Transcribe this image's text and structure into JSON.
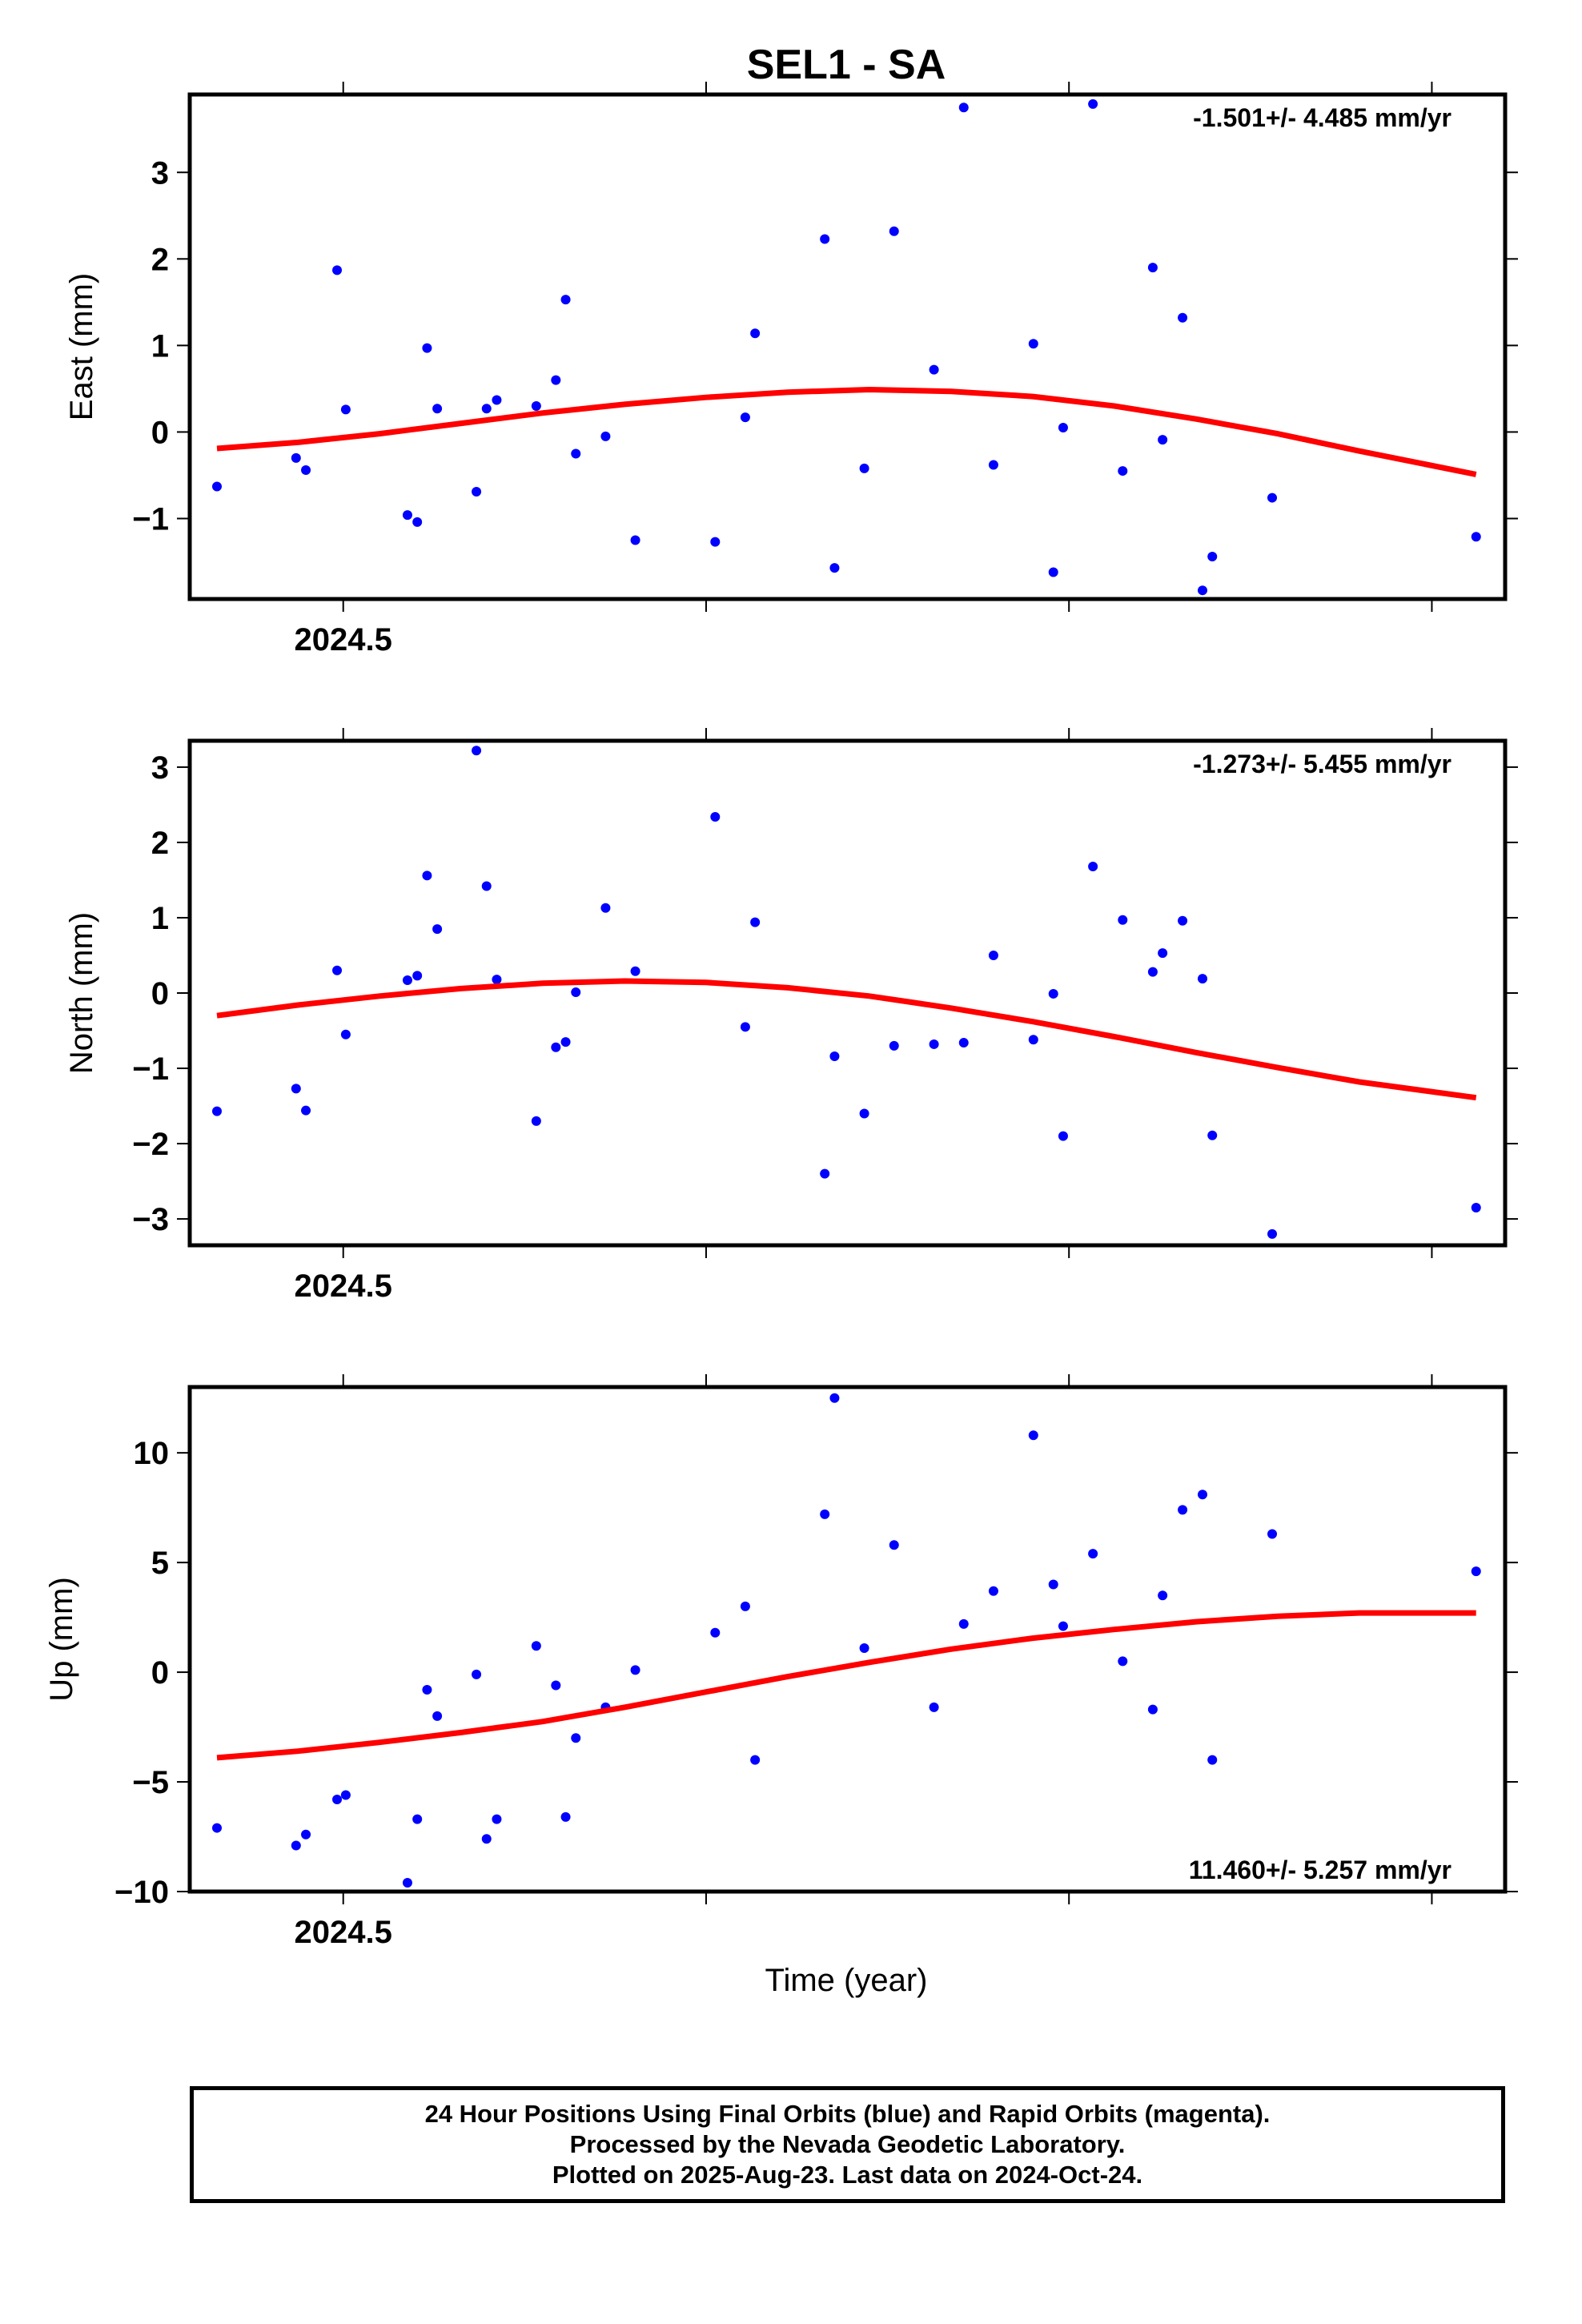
{
  "title": "SEL1 - SA",
  "x_label": "Time (year)",
  "footer": {
    "line1": "24 Hour Positions Using Final Orbits (blue) and Rapid Orbits (magenta).",
    "line2": "Processed by the Nevada Geodetic Laboratory.",
    "line3": "Plotted on 2025-Aug-23. Last data on 2024-Oct-24."
  },
  "colors": {
    "points": "#0000ff",
    "fit": "#ff0000",
    "frame": "#000000"
  },
  "chart_data": [
    {
      "type": "scatter",
      "ylabel": "East (mm)",
      "rate_label": "-1.501+/- 4.485 mm/yr",
      "xlim": [
        2024.4577,
        2024.8202
      ],
      "ylim": [
        -1.93,
        3.9
      ],
      "x_ticks": [
        2024.5,
        2024.6,
        2024.7,
        2024.8
      ],
      "x_tick_labels": [
        "2024.5",
        "",
        "",
        ""
      ],
      "y_ticks": [
        -1,
        0,
        1,
        2,
        3
      ],
      "y_tick_labels": [
        "−1",
        "0",
        "1",
        "2",
        "3"
      ],
      "rate_position": "top-right",
      "points": [
        [
          2024.4652,
          -0.63
        ],
        [
          2024.487,
          -0.3
        ],
        [
          2024.4897,
          -0.44
        ],
        [
          2024.4983,
          1.87
        ],
        [
          2024.5007,
          0.26
        ],
        [
          2024.5177,
          -0.96
        ],
        [
          2024.5204,
          -1.04
        ],
        [
          2024.5231,
          0.97
        ],
        [
          2024.5259,
          0.27
        ],
        [
          2024.5367,
          -0.69
        ],
        [
          2024.5395,
          0.27
        ],
        [
          2024.5423,
          0.37
        ],
        [
          2024.5532,
          0.3
        ],
        [
          2024.5586,
          0.6
        ],
        [
          2024.5613,
          1.53
        ],
        [
          2024.5641,
          -0.25
        ],
        [
          2024.5723,
          -0.05
        ],
        [
          2024.5805,
          -1.25
        ],
        [
          2024.6025,
          -1.27
        ],
        [
          2024.6108,
          0.17
        ],
        [
          2024.6135,
          1.14
        ],
        [
          2024.6327,
          2.23
        ],
        [
          2024.6354,
          -1.57
        ],
        [
          2024.6436,
          -0.42
        ],
        [
          2024.6518,
          2.32
        ],
        [
          2024.6628,
          0.72
        ],
        [
          2024.671,
          3.75
        ],
        [
          2024.6792,
          -0.38
        ],
        [
          2024.6902,
          1.02
        ],
        [
          2024.6957,
          -1.62
        ],
        [
          2024.6984,
          0.05
        ],
        [
          2024.7066,
          3.79
        ],
        [
          2024.7148,
          -0.45
        ],
        [
          2024.7231,
          1.9
        ],
        [
          2024.7258,
          -0.09
        ],
        [
          2024.7313,
          1.32
        ],
        [
          2024.7368,
          -1.83
        ],
        [
          2024.7395,
          -1.44
        ],
        [
          2024.756,
          -0.76
        ],
        [
          2024.8122,
          -1.21
        ]
      ],
      "fit": [
        [
          2024.4652,
          -0.19
        ],
        [
          2024.4875,
          -0.12
        ],
        [
          2024.51,
          -0.02
        ],
        [
          2024.5325,
          0.1
        ],
        [
          2024.555,
          0.22
        ],
        [
          2024.5775,
          0.32
        ],
        [
          2024.6,
          0.4
        ],
        [
          2024.6225,
          0.46
        ],
        [
          2024.645,
          0.49
        ],
        [
          2024.6675,
          0.47
        ],
        [
          2024.69,
          0.41
        ],
        [
          2024.7125,
          0.3
        ],
        [
          2024.735,
          0.15
        ],
        [
          2024.7575,
          -0.02
        ],
        [
          2024.78,
          -0.22
        ],
        [
          2024.8122,
          -0.49
        ]
      ]
    },
    {
      "type": "scatter",
      "ylabel": "North (mm)",
      "rate_label": "-1.273+/- 5.455 mm/yr",
      "xlim": [
        2024.4577,
        2024.8202
      ],
      "ylim": [
        -3.35,
        3.35
      ],
      "x_ticks": [
        2024.5,
        2024.6,
        2024.7,
        2024.8
      ],
      "x_tick_labels": [
        "2024.5",
        "",
        "",
        ""
      ],
      "y_ticks": [
        -3,
        -2,
        -1,
        0,
        1,
        2,
        3
      ],
      "y_tick_labels": [
        "−3",
        "−2",
        "−1",
        "0",
        "1",
        "2",
        "3"
      ],
      "rate_position": "top-right",
      "points": [
        [
          2024.4652,
          -1.57
        ],
        [
          2024.487,
          -1.27
        ],
        [
          2024.4897,
          -1.56
        ],
        [
          2024.4983,
          0.3
        ],
        [
          2024.5007,
          -0.55
        ],
        [
          2024.5177,
          0.17
        ],
        [
          2024.5204,
          0.23
        ],
        [
          2024.5231,
          1.56
        ],
        [
          2024.5259,
          0.85
        ],
        [
          2024.5367,
          3.22
        ],
        [
          2024.5395,
          1.42
        ],
        [
          2024.5423,
          0.18
        ],
        [
          2024.5532,
          -1.7
        ],
        [
          2024.5586,
          -0.72
        ],
        [
          2024.5613,
          -0.65
        ],
        [
          2024.5641,
          0.01
        ],
        [
          2024.5723,
          1.13
        ],
        [
          2024.5805,
          0.29
        ],
        [
          2024.6025,
          2.34
        ],
        [
          2024.6108,
          -0.45
        ],
        [
          2024.6135,
          0.94
        ],
        [
          2024.6327,
          -2.4
        ],
        [
          2024.6354,
          -0.84
        ],
        [
          2024.6436,
          -1.6
        ],
        [
          2024.6518,
          -0.7
        ],
        [
          2024.6628,
          -0.68
        ],
        [
          2024.671,
          -0.66
        ],
        [
          2024.6792,
          0.5
        ],
        [
          2024.6902,
          -0.62
        ],
        [
          2024.6957,
          -0.01
        ],
        [
          2024.6984,
          -1.9
        ],
        [
          2024.7066,
          1.68
        ],
        [
          2024.7148,
          0.97
        ],
        [
          2024.7231,
          0.28
        ],
        [
          2024.7258,
          0.53
        ],
        [
          2024.7313,
          0.96
        ],
        [
          2024.7368,
          0.19
        ],
        [
          2024.7395,
          -1.89
        ],
        [
          2024.756,
          -3.2
        ],
        [
          2024.8122,
          -2.85
        ]
      ],
      "fit": [
        [
          2024.4652,
          -0.3
        ],
        [
          2024.4875,
          -0.16
        ],
        [
          2024.51,
          -0.04
        ],
        [
          2024.5325,
          0.06
        ],
        [
          2024.555,
          0.13
        ],
        [
          2024.5775,
          0.16
        ],
        [
          2024.6,
          0.14
        ],
        [
          2024.6225,
          0.07
        ],
        [
          2024.645,
          -0.04
        ],
        [
          2024.6675,
          -0.2
        ],
        [
          2024.69,
          -0.38
        ],
        [
          2024.7125,
          -0.58
        ],
        [
          2024.735,
          -0.79
        ],
        [
          2024.7575,
          -0.99
        ],
        [
          2024.78,
          -1.18
        ],
        [
          2024.8122,
          -1.39
        ]
      ]
    },
    {
      "type": "scatter",
      "ylabel": "Up (mm)",
      "rate_label": "11.460+/- 5.257 mm/yr",
      "xlim": [
        2024.4577,
        2024.8202
      ],
      "ylim": [
        -10.0,
        13.0
      ],
      "x_ticks": [
        2024.5,
        2024.6,
        2024.7,
        2024.8
      ],
      "x_tick_labels": [
        "2024.5",
        "",
        "",
        ""
      ],
      "y_ticks": [
        -10,
        -5,
        0,
        5,
        10
      ],
      "y_tick_labels": [
        "−10",
        "−5",
        "0",
        "5",
        "10"
      ],
      "rate_position": "bottom-right",
      "points": [
        [
          2024.4652,
          -7.1
        ],
        [
          2024.487,
          -7.9
        ],
        [
          2024.4897,
          -7.4
        ],
        [
          2024.4983,
          -5.8
        ],
        [
          2024.5007,
          -5.6
        ],
        [
          2024.5177,
          -9.6
        ],
        [
          2024.5204,
          -6.7
        ],
        [
          2024.5231,
          -0.8
        ],
        [
          2024.5259,
          -2.0
        ],
        [
          2024.5367,
          -0.1
        ],
        [
          2024.5395,
          -7.6
        ],
        [
          2024.5423,
          -6.7
        ],
        [
          2024.5532,
          1.2
        ],
        [
          2024.5586,
          -0.6
        ],
        [
          2024.5613,
          -6.6
        ],
        [
          2024.5641,
          -3.0
        ],
        [
          2024.5723,
          -1.6
        ],
        [
          2024.5805,
          0.1
        ],
        [
          2024.6025,
          1.8
        ],
        [
          2024.6108,
          3.0
        ],
        [
          2024.6135,
          -4.0
        ],
        [
          2024.6327,
          7.2
        ],
        [
          2024.6354,
          12.5
        ],
        [
          2024.6436,
          1.1
        ],
        [
          2024.6518,
          5.8
        ],
        [
          2024.6628,
          -1.6
        ],
        [
          2024.671,
          2.2
        ],
        [
          2024.6792,
          3.7
        ],
        [
          2024.6902,
          10.8
        ],
        [
          2024.6957,
          4.0
        ],
        [
          2024.6984,
          2.1
        ],
        [
          2024.7066,
          5.4
        ],
        [
          2024.7148,
          0.5
        ],
        [
          2024.7231,
          -1.7
        ],
        [
          2024.7258,
          3.5
        ],
        [
          2024.7313,
          7.4
        ],
        [
          2024.7368,
          8.1
        ],
        [
          2024.7395,
          -4.0
        ],
        [
          2024.756,
          6.3
        ],
        [
          2024.8122,
          4.6
        ]
      ],
      "fit": [
        [
          2024.4652,
          -3.9
        ],
        [
          2024.4875,
          -3.6
        ],
        [
          2024.51,
          -3.2
        ],
        [
          2024.5325,
          -2.75
        ],
        [
          2024.555,
          -2.25
        ],
        [
          2024.5775,
          -1.6
        ],
        [
          2024.6,
          -0.9
        ],
        [
          2024.6225,
          -0.2
        ],
        [
          2024.645,
          0.45
        ],
        [
          2024.6675,
          1.05
        ],
        [
          2024.69,
          1.55
        ],
        [
          2024.7125,
          1.95
        ],
        [
          2024.735,
          2.3
        ],
        [
          2024.7575,
          2.55
        ],
        [
          2024.78,
          2.7
        ],
        [
          2024.8122,
          2.7
        ]
      ]
    }
  ]
}
